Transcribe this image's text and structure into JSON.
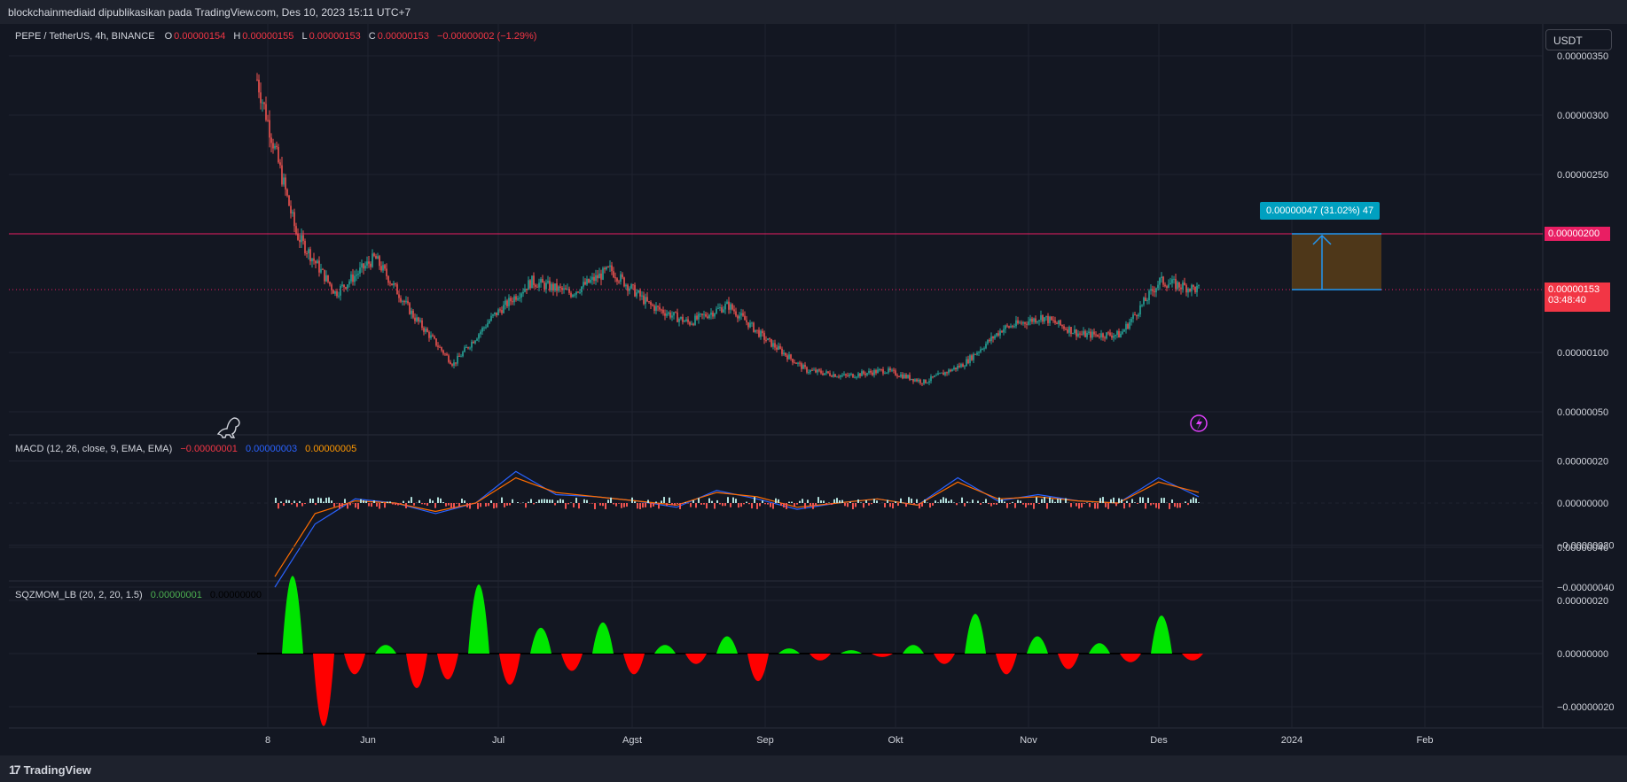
{
  "header": {
    "publisher": "blockchainmediaid dipublikasikan pada TradingView.com, Des 10, 2023 15:11 UTC+7"
  },
  "currency_button": "USDT",
  "legend": {
    "symbol": "PEPE / TetherUS, 4h, BINANCE",
    "o_label": "O",
    "o": "0.00000154",
    "h_label": "H",
    "h": "0.00000155",
    "l_label": "L",
    "l": "0.00000153",
    "c_label": "C",
    "c": "0.00000153",
    "change": "−0.00000002 (−1.29%)"
  },
  "macd_legend": {
    "name": "MACD (12, 26, close, 9, EMA, EMA)",
    "hist": "−0.00000001",
    "macd": "0.00000003",
    "signal": "0.00000005"
  },
  "sqz_legend": {
    "name": "SQZMOM_LB (20, 2, 20, 1.5)",
    "val": "0.00000001",
    "val2": "0.00000000"
  },
  "price_tags": {
    "resistance": "0.00000200",
    "last": "0.00000153",
    "countdown": "03:48:40"
  },
  "measure_label": "0.00000047 (31.02%) 47",
  "footer": {
    "brand": "TradingView"
  },
  "colors": {
    "bg": "#131722",
    "up": "#26a69a",
    "down": "#ef5350",
    "resistance": "#e91e63",
    "macd": "#2962ff",
    "signal": "#ff6d00",
    "sqz_up": "#00e600",
    "sqz_down": "#ff0000"
  },
  "chart_data": [
    {
      "type": "candlestick",
      "title": "PEPE / TetherUS, 4h, BINANCE",
      "y_ticks": [
        "0.00000050",
        "0.00000100",
        "0.00000250",
        "0.00000300",
        "0.00000350"
      ],
      "ylim": [
        3e-07,
        3.5e-06
      ],
      "x_ticks": [
        "8",
        "Jun",
        "Jul",
        "Agst",
        "Sep",
        "Okt",
        "Nov",
        "Des",
        "2024",
        "Feb"
      ],
      "approx_close_path": [
        [
          "8",
          3.3e-06
        ],
        [
          "8",
          2e-06
        ],
        [
          "8",
          1.5e-06
        ],
        [
          "8",
          1.8e-06
        ],
        [
          "Jun",
          1.3e-06
        ],
        [
          "Jun",
          9e-07
        ],
        [
          "Jun",
          1.3e-06
        ],
        [
          "Jul",
          1.6e-06
        ],
        [
          "Jul",
          1.5e-06
        ],
        [
          "Jul",
          1.7e-06
        ],
        [
          "Agst",
          1.4e-06
        ],
        [
          "Agst",
          1.25e-06
        ],
        [
          "Agst",
          1.4e-06
        ],
        [
          "Agst",
          1.1e-06
        ],
        [
          "Sep",
          8.5e-07
        ],
        [
          "Sep",
          8e-07
        ],
        [
          "Okt",
          8.5e-07
        ],
        [
          "Okt",
          7.5e-07
        ],
        [
          "Okt",
          9e-07
        ],
        [
          "Nov",
          1.2e-06
        ],
        [
          "Nov",
          1.3e-06
        ],
        [
          "Nov",
          1.15e-06
        ],
        [
          "Des",
          1.15e-06
        ],
        [
          "Des",
          1.6e-06
        ],
        [
          "Des",
          1.53e-06
        ]
      ],
      "horizontal_lines": [
        {
          "value": 2e-06,
          "style": "solid"
        },
        {
          "value": 1.53e-06,
          "style": "dotted"
        }
      ],
      "measure": {
        "from": 1.53e-06,
        "to": 2e-06,
        "change": "0.00000047 (31.02%) 47"
      }
    },
    {
      "type": "line",
      "title": "MACD (12, 26, close, 9, EMA, EMA)",
      "y_ticks": [
        "0.00000020",
        "0.00000000",
        "−0.00000020",
        "−0.00000040"
      ],
      "ylim": [
        -4.2e-07,
        2.2e-07
      ],
      "series": [
        {
          "name": "MACD",
          "values": [
            -4e-07,
            -1e-07,
            2e-08,
            0.0,
            -5e-08,
            0.0,
            1.5e-07,
            4e-08,
            3e-08,
            1e-08,
            -2e-08,
            6e-08,
            2e-08,
            -3e-08,
            0.0,
            2e-08,
            -1e-08,
            1.2e-07,
            1e-08,
            4e-08,
            1e-08,
            0.0,
            1.2e-07,
            3e-08
          ]
        },
        {
          "name": "Signal",
          "values": [
            -3.5e-07,
            -5e-08,
            1e-08,
            0.0,
            -4e-08,
            0.0,
            1.2e-07,
            5e-08,
            3e-08,
            1e-08,
            -1e-08,
            5e-08,
            3e-08,
            -2e-08,
            0.0,
            2e-08,
            -1e-08,
            1e-07,
            2e-08,
            3e-08,
            1e-08,
            0.0,
            1e-07,
            5e-08
          ]
        }
      ]
    },
    {
      "type": "bar",
      "title": "SQZMOM_LB (20, 2, 20, 1.5)",
      "y_ticks": [
        "0.00000040",
        "0.00000020",
        "0.00000000",
        "−0.00000020",
        "−0.00000040"
      ],
      "ylim": [
        -4.5e-07,
        5e-07
      ],
      "values": [
        4.5e-07,
        -4.2e-07,
        -1.2e-07,
        5e-08,
        -2e-07,
        -1.5e-07,
        4e-07,
        -1.8e-07,
        1.5e-07,
        -1e-07,
        1.8e-07,
        -1.2e-07,
        5e-08,
        -6e-08,
        1e-07,
        -1.6e-07,
        3e-08,
        -4e-08,
        2e-08,
        -2e-08,
        5e-08,
        -6e-08,
        2.3e-07,
        -1.2e-07,
        1e-07,
        -9e-08,
        6e-08,
        -5e-08,
        2.2e-07,
        -4e-08
      ]
    }
  ]
}
